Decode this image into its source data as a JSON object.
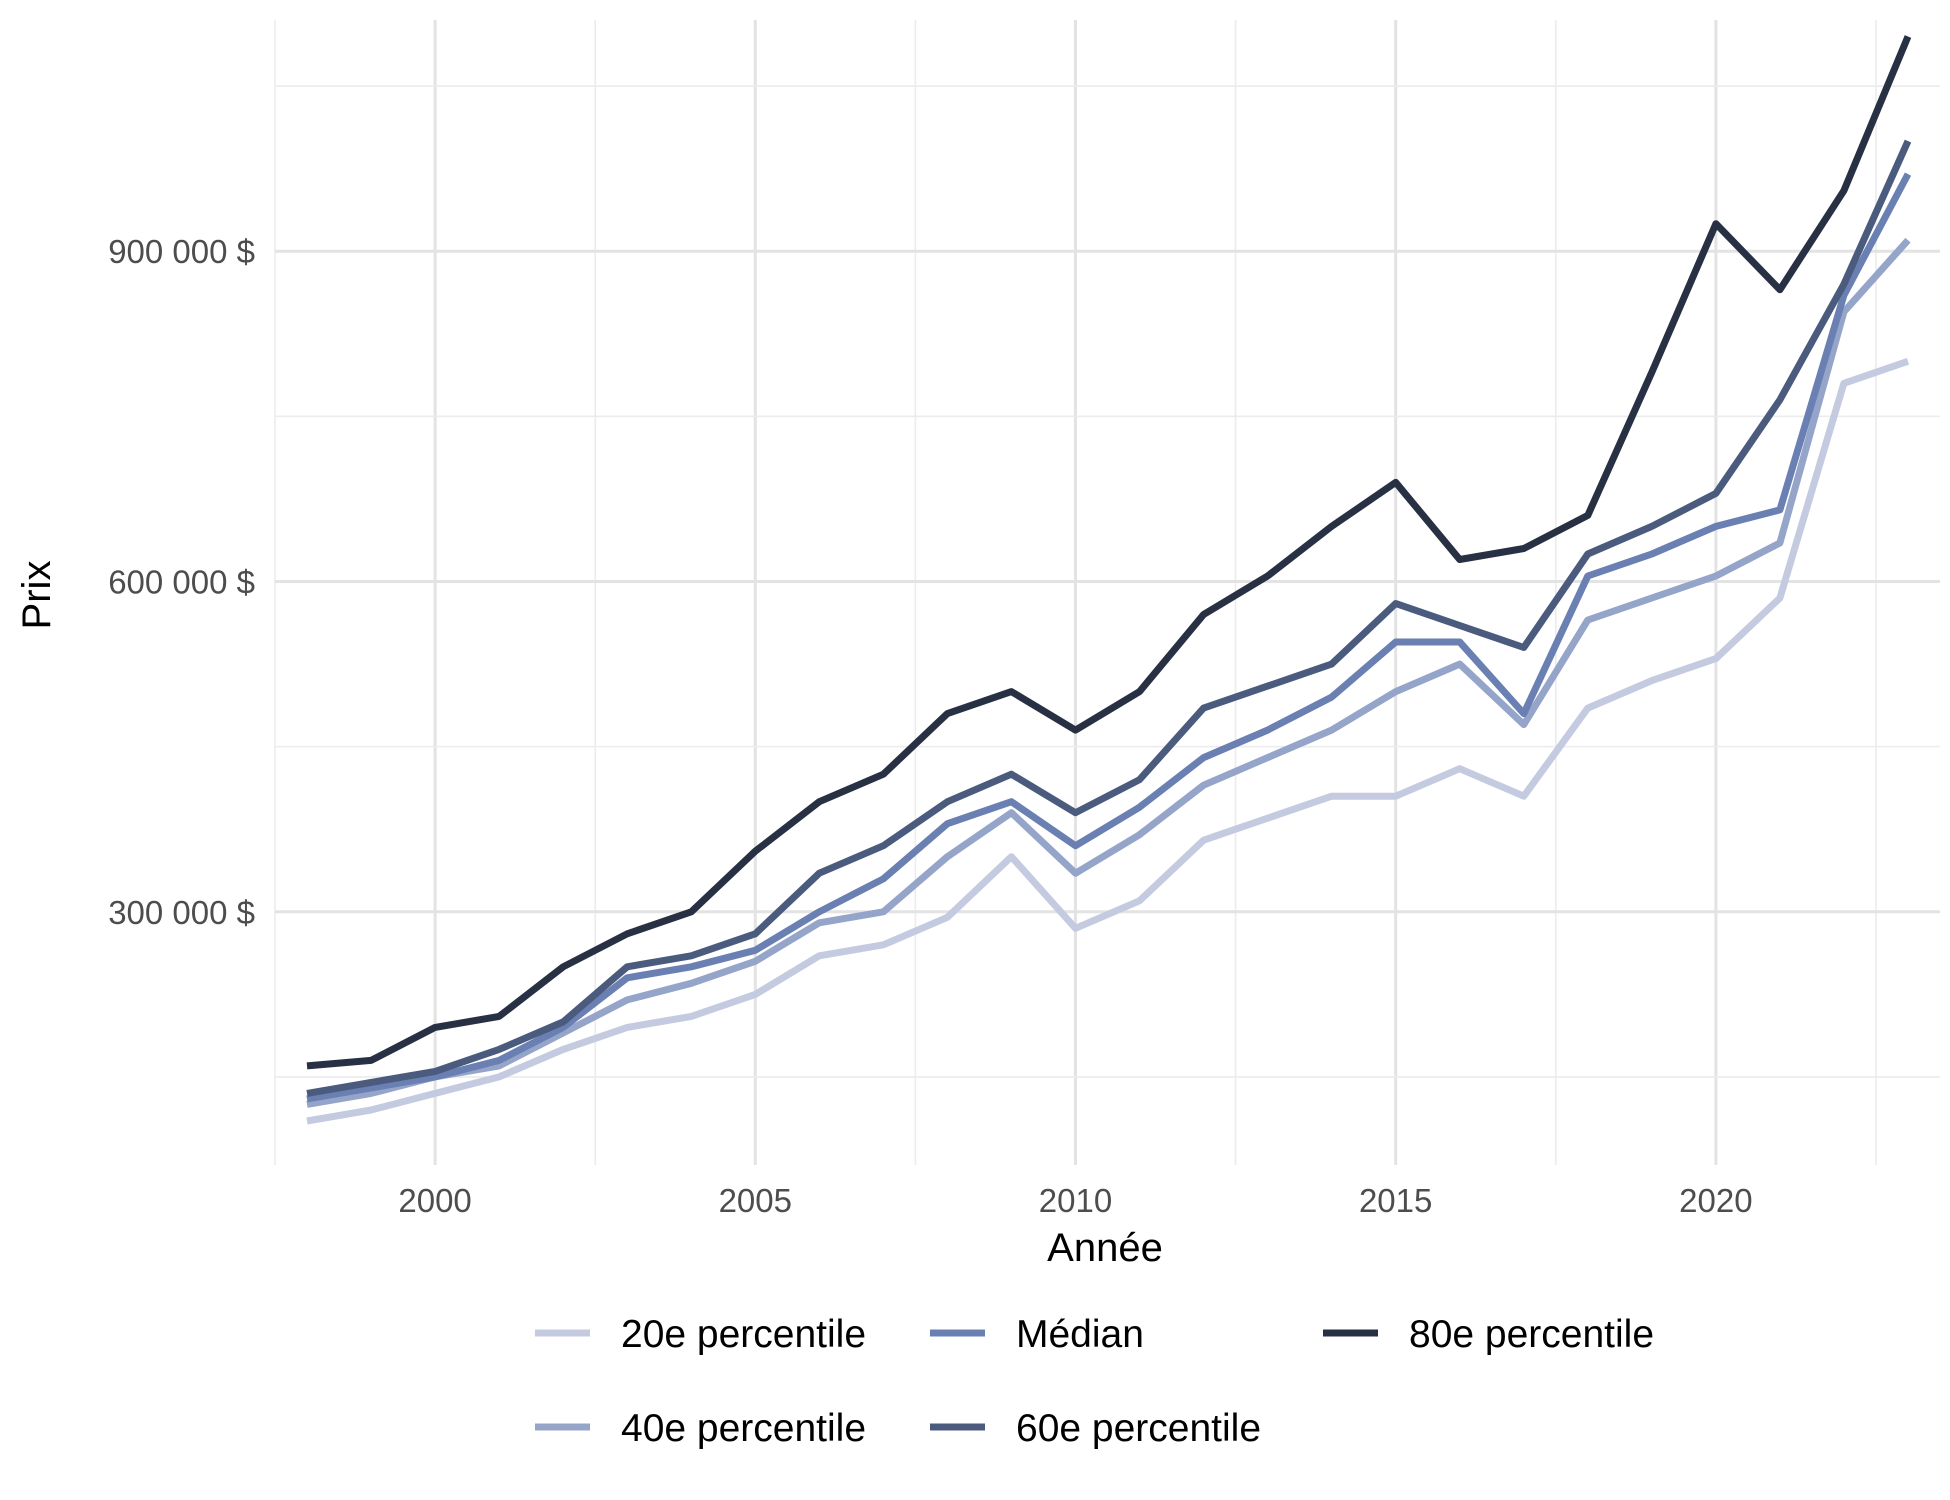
{
  "chart_data": {
    "type": "line",
    "title": "",
    "xlabel": "Année",
    "ylabel": "Prix",
    "xlim": [
      1997.5,
      2023.5
    ],
    "ylim": [
      70000,
      1110000
    ],
    "x_ticks": [
      {
        "value": 2000,
        "label": "2000"
      },
      {
        "value": 2005,
        "label": "2005"
      },
      {
        "value": 2010,
        "label": "2010"
      },
      {
        "value": 2015,
        "label": "2015"
      },
      {
        "value": 2020,
        "label": "2020"
      }
    ],
    "y_ticks": [
      {
        "value": 300000,
        "label": "300 000 $"
      },
      {
        "value": 600000,
        "label": "600 000 $"
      },
      {
        "value": 900000,
        "label": "900 000 $"
      }
    ],
    "grid": true,
    "legend_position": "bottom",
    "x": [
      1998,
      1999,
      2000,
      2001,
      2002,
      2003,
      2004,
      2005,
      2006,
      2007,
      2008,
      2009,
      2010,
      2011,
      2012,
      2013,
      2014,
      2015,
      2016,
      2017,
      2018,
      2019,
      2020,
      2021,
      2022,
      2023
    ],
    "series": [
      {
        "name": "20e percentile",
        "color": "#c4cbe0",
        "values": [
          110000,
          120000,
          135000,
          150000,
          175000,
          195000,
          205000,
          225000,
          260000,
          270000,
          295000,
          350000,
          285000,
          310000,
          365000,
          385000,
          405000,
          405000,
          430000,
          405000,
          485000,
          510000,
          530000,
          585000,
          780000,
          800000
        ]
      },
      {
        "name": "40e percentile",
        "color": "#95a4c9",
        "values": [
          125000,
          135000,
          150000,
          160000,
          190000,
          220000,
          235000,
          255000,
          290000,
          300000,
          350000,
          390000,
          335000,
          370000,
          415000,
          440000,
          465000,
          500000,
          525000,
          470000,
          565000,
          585000,
          605000,
          635000,
          845000,
          910000
        ]
      },
      {
        "name": "Médian",
        "color": "#6a7fb2",
        "values": [
          130000,
          140000,
          150000,
          165000,
          195000,
          240000,
          250000,
          265000,
          300000,
          330000,
          380000,
          400000,
          360000,
          395000,
          440000,
          465000,
          495000,
          545000,
          545000,
          480000,
          605000,
          625000,
          650000,
          665000,
          860000,
          970000
        ]
      },
      {
        "name": "60e percentile",
        "color": "#4b5b7e",
        "values": [
          135000,
          145000,
          155000,
          175000,
          200000,
          250000,
          260000,
          280000,
          335000,
          360000,
          400000,
          425000,
          390000,
          420000,
          485000,
          505000,
          525000,
          580000,
          560000,
          540000,
          625000,
          650000,
          680000,
          765000,
          870000,
          1000000
        ]
      },
      {
        "name": "80e percentile",
        "color": "#283044",
        "values": [
          160000,
          165000,
          195000,
          205000,
          250000,
          280000,
          300000,
          355000,
          400000,
          425000,
          480000,
          500000,
          465000,
          500000,
          570000,
          605000,
          650000,
          690000,
          620000,
          630000,
          660000,
          790000,
          925000,
          865000,
          955000,
          1095000
        ]
      }
    ]
  }
}
